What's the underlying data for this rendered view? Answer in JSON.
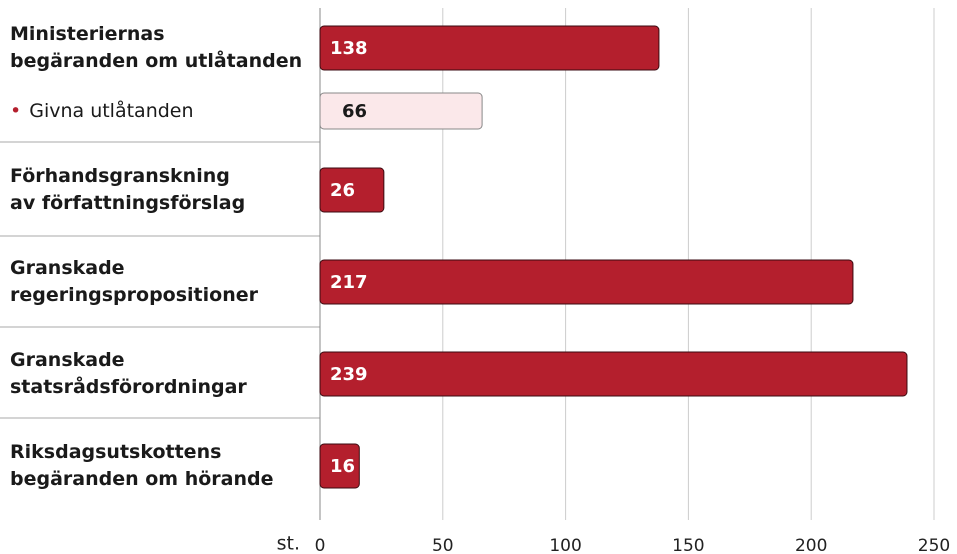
{
  "chart_data": {
    "type": "bar",
    "orientation": "horizontal",
    "categories": [
      "Ministeriernas\nbegäranden om utlåtanden",
      "Givna utlåtanden",
      "Förhandsgranskning\nav författningsförslag",
      "Granskade\nregeringspropositioner",
      "Granskade\nstatsrådsförordningar",
      "Riksdagsutskottens\nbegäranden om hörande"
    ],
    "values": [
      138,
      66,
      26,
      217,
      239,
      16
    ],
    "colors": [
      "#b41f2d",
      "#fbe8ea",
      "#b41f2d",
      "#b41f2d",
      "#b41f2d",
      "#b41f2d"
    ],
    "xlabel": "st.",
    "xlim": [
      0,
      250
    ],
    "xticks": [
      0,
      50,
      100,
      150,
      200,
      250
    ],
    "grid": true
  }
}
